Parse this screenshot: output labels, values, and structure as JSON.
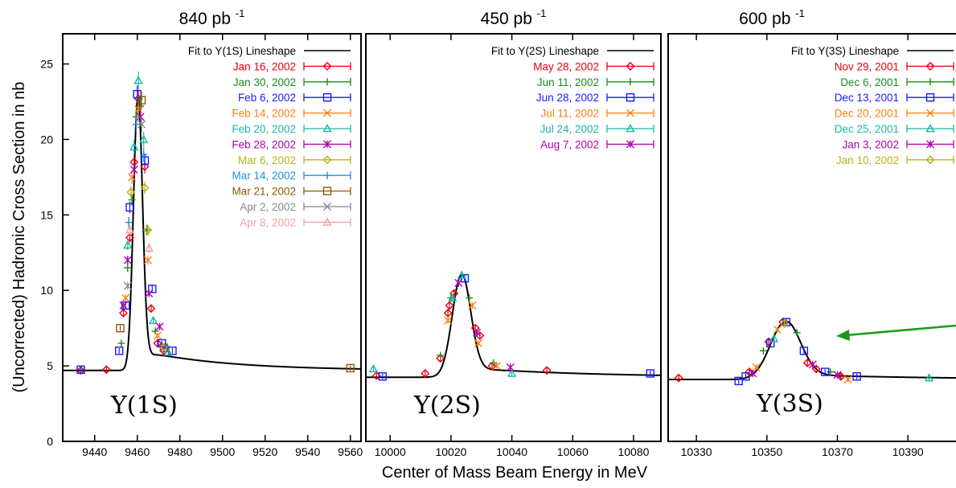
{
  "ylabel": "(Uncorrected) Hadronic Cross Section in nb",
  "xlabel": "Center of Mass Beam Energy in MeV",
  "chart_data": [
    {
      "type": "scatter",
      "title": "840 pb",
      "title_sup": "-1",
      "resonance_label": "Υ(1S)",
      "fit_label": "Fit to Y(1S) Lineshape",
      "xlim": [
        9425,
        9565
      ],
      "ylim": [
        0,
        27
      ],
      "xticks": [
        9440,
        9460,
        9480,
        9500,
        9520,
        9540,
        9560
      ],
      "yticks": [
        0,
        5,
        10,
        15,
        20,
        25
      ],
      "fit": {
        "peak_x": 9460.3,
        "peak_y": 22.8,
        "base_y": 4.7,
        "width": 2.1,
        "tail_amp": 1.35,
        "tail_decay": 40
      },
      "series": [
        {
          "name": "Jan 16, 2002",
          "color": "#e8000b",
          "marker": "diamond",
          "points": [
            [
              9433.5,
              4.7
            ],
            [
              9445.5,
              4.75
            ],
            [
              9453.5,
              8.5
            ],
            [
              9456.5,
              13.5
            ],
            [
              9458.5,
              18.5
            ],
            [
              9460.5,
              22.7
            ],
            [
              9463.5,
              18.2
            ],
            [
              9466.5,
              8.8
            ],
            [
              9469.5,
              6.5
            ],
            [
              9472.5,
              6.0
            ]
          ]
        },
        {
          "name": "Jan 30, 2002",
          "color": "#1a8a1a",
          "marker": "plus",
          "points": [
            [
              9452.5,
              6.5
            ],
            [
              9455.5,
              11.5
            ],
            [
              9457.5,
              16.0
            ],
            [
              9459.5,
              21.5
            ],
            [
              9461.5,
              22.2
            ],
            [
              9464.5,
              14.0
            ],
            [
              9468.5,
              7.3
            ]
          ]
        },
        {
          "name": "Feb 6, 2002",
          "color": "#1a1aff",
          "marker": "square",
          "points": [
            [
              9433.5,
              4.75
            ],
            [
              9451.5,
              6.0
            ],
            [
              9454.5,
              9.0
            ],
            [
              9456.5,
              15.5
            ],
            [
              9460.0,
              23.0
            ],
            [
              9463.5,
              18.6
            ],
            [
              9467.0,
              10.1
            ],
            [
              9471.5,
              6.5
            ],
            [
              9476.5,
              6.0
            ]
          ]
        },
        {
          "name": "Feb 14, 2002",
          "color": "#ff7f0e",
          "marker": "cross",
          "points": [
            [
              9454.5,
              9.5
            ],
            [
              9457.5,
              17.5
            ],
            [
              9460.5,
              22.0
            ],
            [
              9465.0,
              12.0
            ],
            [
              9469.5,
              7.0
            ]
          ]
        },
        {
          "name": "Feb 20, 2002",
          "color": "#17b8a6",
          "marker": "triangle",
          "points": [
            [
              9455.5,
              13.0
            ],
            [
              9458.5,
              19.5
            ],
            [
              9460.5,
              23.9
            ],
            [
              9463.0,
              20.0
            ],
            [
              9467.5,
              8.0
            ],
            [
              9474.5,
              5.9
            ]
          ]
        },
        {
          "name": "Feb 28, 2002",
          "color": "#b000b0",
          "marker": "star",
          "points": [
            [
              9453.5,
              9.0
            ],
            [
              9455.5,
              12.0
            ],
            [
              9458.5,
              18.0
            ],
            [
              9461.5,
              21.5
            ],
            [
              9465.5,
              9.8
            ],
            [
              9470.5,
              7.6
            ]
          ]
        },
        {
          "name": "Mar 6, 2002",
          "color": "#b5b50e",
          "marker": "diamond",
          "points": [
            [
              9457.0,
              16.5
            ],
            [
              9463.5,
              16.8
            ],
            [
              9465.0,
              14.0
            ]
          ]
        },
        {
          "name": "Mar 14, 2002",
          "color": "#1f8fd6",
          "marker": "plus",
          "points": [
            [
              9456.0,
              14.5
            ],
            [
              9459.5,
              21.0
            ],
            [
              9463.0,
              19.0
            ],
            [
              9473.5,
              6.3
            ]
          ]
        },
        {
          "name": "Mar 21, 2002",
          "color": "#8b5a00",
          "marker": "square",
          "points": [
            [
              9452.0,
              7.5
            ],
            [
              9462.0,
              22.6
            ],
            [
              9472.5,
              6.2
            ],
            [
              9560.0,
              4.85
            ]
          ]
        },
        {
          "name": "Apr 2, 2002",
          "color": "#888888",
          "marker": "cross",
          "points": [
            [
              9455.5,
              10.3
            ],
            [
              9462.0,
              21.0
            ]
          ]
        },
        {
          "name": "Apr 8, 2002",
          "color": "#f4a0a0",
          "marker": "triangle",
          "points": [
            [
              9456.5,
              14.0
            ],
            [
              9465.5,
              12.8
            ]
          ]
        }
      ]
    },
    {
      "type": "scatter",
      "title": "450 pb",
      "title_sup": "-1",
      "resonance_label": "Υ(2S)",
      "fit_label": "Fit to Y(2S) Lineshape",
      "xlim": [
        9992,
        10089
      ],
      "ylim": [
        0,
        27
      ],
      "xticks": [
        10000,
        10020,
        10040,
        10060,
        10080
      ],
      "yticks": [],
      "fit": {
        "peak_x": 10023.4,
        "peak_y": 11.0,
        "base_y": 4.25,
        "width": 3.0,
        "tail_amp": 0.65,
        "tail_decay": 40
      },
      "series": [
        {
          "name": "May 28, 2002",
          "color": "#e8000b",
          "marker": "diamond",
          "points": [
            [
              9995.5,
              4.35
            ],
            [
              10011.5,
              4.5
            ],
            [
              10016.5,
              5.5
            ],
            [
              10019.0,
              8.5
            ],
            [
              10019.5,
              9.0
            ],
            [
              10021.0,
              9.8
            ],
            [
              10028.0,
              7.5
            ],
            [
              10029.5,
              7.0
            ],
            [
              10033.5,
              5.0
            ],
            [
              10051.5,
              4.7
            ]
          ]
        },
        {
          "name": "Jun 11, 2002",
          "color": "#1a8a1a",
          "marker": "plus",
          "points": [
            [
              10016.5,
              5.7
            ],
            [
              10020.0,
              9.5
            ],
            [
              10026.0,
              9.5
            ],
            [
              10034.0,
              5.2
            ]
          ]
        },
        {
          "name": "Jun 28, 2002",
          "color": "#1a1aff",
          "marker": "square",
          "points": [
            [
              9997.5,
              4.3
            ],
            [
              10024.5,
              10.8
            ],
            [
              10085.5,
              4.5
            ]
          ]
        },
        {
          "name": "Jul 11, 2002",
          "color": "#ff7f0e",
          "marker": "cross",
          "points": [
            [
              10019.0,
              8.0
            ],
            [
              10027.0,
              9.0
            ],
            [
              10029.0,
              6.5
            ],
            [
              10035.0,
              5.0
            ]
          ]
        },
        {
          "name": "Jul 24, 2002",
          "color": "#17b8a6",
          "marker": "triangle",
          "points": [
            [
              9994.5,
              4.8
            ],
            [
              10020.5,
              9.5
            ],
            [
              10023.5,
              11.0
            ],
            [
              10040.0,
              4.5
            ]
          ]
        },
        {
          "name": "Aug 7, 2002",
          "color": "#b000b0",
          "marker": "star",
          "points": [
            [
              10022.5,
              10.5
            ],
            [
              10028.5,
              7.2
            ],
            [
              10039.5,
              4.9
            ]
          ]
        }
      ]
    },
    {
      "type": "scatter",
      "title": "600 pb",
      "title_sup": "-1",
      "resonance_label": "Υ(3S)",
      "fit_label": "Fit to Y(3S) Lineshape",
      "xlim": [
        10322,
        10405
      ],
      "ylim": [
        0,
        27
      ],
      "xticks": [
        10330,
        10350,
        10370,
        10390
      ],
      "yticks": [],
      "fit": {
        "peak_x": 10355.2,
        "peak_y": 7.9,
        "base_y": 4.1,
        "width": 4.2,
        "tail_amp": 0.35,
        "tail_decay": 40
      },
      "series": [
        {
          "name": "Nov 29, 2001",
          "color": "#e8000b",
          "marker": "diamond",
          "points": [
            [
              10325.0,
              4.2
            ],
            [
              10345.0,
              4.6
            ],
            [
              10350.5,
              6.6
            ],
            [
              10354.5,
              7.9
            ],
            [
              10361.5,
              5.2
            ],
            [
              10364.0,
              4.8
            ],
            [
              10371.0,
              4.3
            ]
          ]
        },
        {
          "name": "Dec 6, 2001",
          "color": "#1a8a1a",
          "marker": "plus",
          "points": [
            [
              10349.0,
              6.0
            ],
            [
              10358.5,
              7.2
            ],
            [
              10368.0,
              4.6
            ]
          ]
        },
        {
          "name": "Dec 13, 2001",
          "color": "#1a1aff",
          "marker": "square",
          "points": [
            [
              10342.0,
              4.0
            ],
            [
              10344.0,
              4.3
            ],
            [
              10351.0,
              6.5
            ],
            [
              10355.5,
              7.9
            ],
            [
              10360.5,
              6.0
            ],
            [
              10366.5,
              4.6
            ],
            [
              10375.5,
              4.3
            ]
          ]
        },
        {
          "name": "Dec 20, 2001",
          "color": "#ff7f0e",
          "marker": "cross",
          "points": [
            [
              10347.0,
              4.9
            ],
            [
              10353.0,
              7.4
            ],
            [
              10373.0,
              4.1
            ]
          ]
        },
        {
          "name": "Dec 25, 2001",
          "color": "#17b8a6",
          "marker": "triangle",
          "points": [
            [
              10352.0,
              6.8
            ],
            [
              10396.0,
              4.2
            ]
          ]
        },
        {
          "name": "Jan 3, 2002",
          "color": "#b000b0",
          "marker": "star",
          "points": [
            [
              10346.0,
              4.5
            ],
            [
              10363.0,
              5.1
            ],
            [
              10370.0,
              4.4
            ]
          ]
        },
        {
          "name": "Jan 10, 2002",
          "color": "#b5b50e",
          "marker": "diamond",
          "points": [
            [
              10355.0,
              7.8
            ]
          ]
        }
      ]
    }
  ],
  "annotation": {
    "type": "arrow",
    "color": "#1a9a1a"
  }
}
